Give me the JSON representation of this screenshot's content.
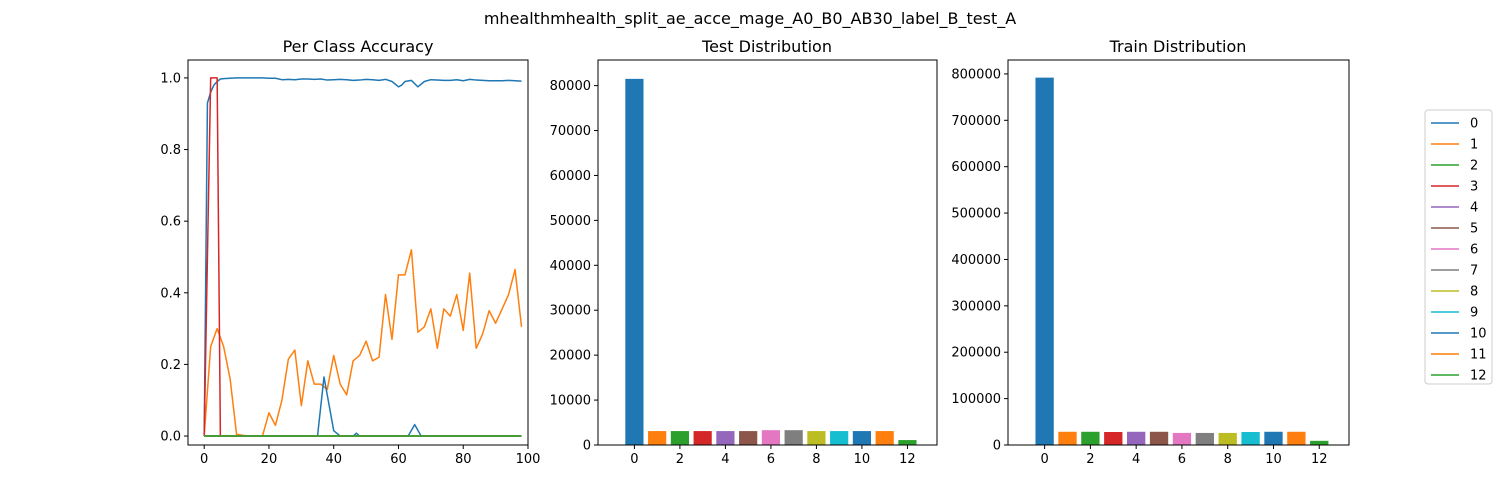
{
  "figure": {
    "suptitle": "mhealthmhealth_split_ae_acce_mage_A0_B0_AB30_label_B_test_A"
  },
  "colors": [
    "#1f77b4",
    "#ff7f0e",
    "#2ca02c",
    "#d62728",
    "#9467bd",
    "#8c564b",
    "#e377c2",
    "#7f7f7f",
    "#bcbd22",
    "#17becf",
    "#1f77b4",
    "#ff7f0e",
    "#2ca02c"
  ],
  "legend": {
    "placement": "right",
    "labels": [
      "0",
      "1",
      "2",
      "3",
      "4",
      "5",
      "6",
      "7",
      "8",
      "9",
      "10",
      "11",
      "12"
    ]
  },
  "chart_data": [
    {
      "type": "line",
      "title": "Per Class Accuracy",
      "xlim": [
        -5,
        100
      ],
      "ylim": [
        -0.025,
        1.05
      ],
      "xticks": [
        "0",
        "20",
        "40",
        "60",
        "80",
        "100"
      ],
      "yticks": [
        "0.0",
        "0.2",
        "0.4",
        "0.6",
        "0.8",
        "1.0"
      ],
      "series": [
        {
          "label": "0",
          "x": [
            0,
            1,
            2,
            3,
            4,
            5,
            6,
            8,
            10,
            12,
            14,
            16,
            18,
            20,
            22,
            24,
            26,
            28,
            30,
            32,
            34,
            36,
            38,
            40,
            42,
            44,
            46,
            48,
            50,
            52,
            54,
            56,
            58,
            60,
            61,
            62,
            64,
            66,
            68,
            70,
            72,
            74,
            76,
            78,
            80,
            82,
            84,
            86,
            88,
            90,
            92,
            94,
            96,
            98
          ],
          "y": [
            0,
            0.93,
            0.96,
            0.98,
            0.99,
            0.997,
            0.998,
            0.999,
            1,
            1,
            1,
            1,
            1,
            0.999,
            0.999,
            0.995,
            0.996,
            0.995,
            0.997,
            0.997,
            0.996,
            0.997,
            0.994,
            0.995,
            0.996,
            0.995,
            0.993,
            0.994,
            0.996,
            0.995,
            0.993,
            0.996,
            0.99,
            0.975,
            0.98,
            0.99,
            0.993,
            0.975,
            0.99,
            0.995,
            0.994,
            0.993,
            0.993,
            0.995,
            0.992,
            0.996,
            0.994,
            0.993,
            0.992,
            0.992,
            0.992,
            0.993,
            0.992,
            0.991
          ]
        },
        {
          "label": "1",
          "x": [
            0,
            2,
            4,
            6,
            8,
            10,
            12,
            14,
            16,
            18,
            20,
            22,
            24,
            26,
            28,
            30,
            32,
            34,
            36,
            38,
            40,
            42,
            44,
            46,
            48,
            50,
            52,
            54,
            56,
            58,
            60,
            62,
            64,
            66,
            68,
            70,
            72,
            74,
            76,
            78,
            80,
            82,
            84,
            86,
            88,
            90,
            92,
            94,
            96,
            98
          ],
          "y": [
            0,
            0.25,
            0.3,
            0.25,
            0.16,
            0.005,
            0.002,
            0,
            0,
            0,
            0.065,
            0.03,
            0.1,
            0.215,
            0.24,
            0.085,
            0.21,
            0.145,
            0.145,
            0.13,
            0.225,
            0.145,
            0.115,
            0.21,
            0.225,
            0.265,
            0.21,
            0.22,
            0.395,
            0.27,
            0.45,
            0.45,
            0.52,
            0.29,
            0.305,
            0.355,
            0.245,
            0.355,
            0.335,
            0.395,
            0.295,
            0.455,
            0.245,
            0.285,
            0.35,
            0.315,
            0.355,
            0.395,
            0.465,
            0.305
          ]
        },
        {
          "label": "2",
          "x": [
            0,
            98
          ],
          "y": [
            0,
            0
          ]
        },
        {
          "label": "3",
          "x": [
            0,
            2,
            3,
            4,
            5,
            6,
            8,
            10,
            20,
            40,
            60,
            80,
            98
          ],
          "y": [
            0,
            1,
            1,
            1,
            0,
            0,
            0,
            0,
            0,
            0,
            0,
            0,
            0
          ]
        },
        {
          "label": "4",
          "x": [
            0,
            98
          ],
          "y": [
            0,
            0
          ]
        },
        {
          "label": "5",
          "x": [
            0,
            98
          ],
          "y": [
            0,
            0
          ]
        },
        {
          "label": "6",
          "x": [
            0,
            98
          ],
          "y": [
            0,
            0
          ]
        },
        {
          "label": "7",
          "x": [
            0,
            98
          ],
          "y": [
            0,
            0
          ]
        },
        {
          "label": "8",
          "x": [
            0,
            98
          ],
          "y": [
            0,
            0
          ]
        },
        {
          "label": "9",
          "x": [
            0,
            98
          ],
          "y": [
            0,
            0
          ]
        },
        {
          "label": "10",
          "x": [
            0,
            34,
            35,
            37,
            38,
            39,
            40,
            42,
            44,
            46,
            47,
            48,
            50,
            60,
            63,
            65,
            67,
            70,
            80,
            98
          ],
          "y": [
            0,
            0,
            0,
            0.165,
            0.115,
            0.065,
            0.015,
            0,
            0,
            0,
            0.008,
            0,
            0,
            0,
            0,
            0.032,
            0,
            0,
            0,
            0
          ]
        },
        {
          "label": "11",
          "x": [
            0,
            98
          ],
          "y": [
            0,
            0
          ]
        },
        {
          "label": "12",
          "x": [
            0,
            98
          ],
          "y": [
            0,
            0
          ]
        }
      ]
    },
    {
      "type": "bar",
      "title": "Test Distribution",
      "xlim": [
        -1.6,
        13.3
      ],
      "ylim": [
        0,
        85700
      ],
      "xticks": [
        "0",
        "2",
        "4",
        "6",
        "8",
        "10",
        "12"
      ],
      "yticks": [
        "0",
        "10000",
        "20000",
        "30000",
        "40000",
        "50000",
        "60000",
        "70000",
        "80000"
      ],
      "categories": [
        0,
        1,
        2,
        3,
        4,
        5,
        6,
        7,
        8,
        9,
        10,
        11,
        12
      ],
      "values": [
        81500,
        3100,
        3100,
        3100,
        3100,
        3100,
        3300,
        3300,
        3100,
        3100,
        3100,
        3100,
        1100
      ]
    },
    {
      "type": "bar",
      "title": "Train Distribution",
      "xlim": [
        -1.6,
        13.3
      ],
      "ylim": [
        0,
        830000
      ],
      "xticks": [
        "0",
        "2",
        "4",
        "6",
        "8",
        "10",
        "12"
      ],
      "yticks": [
        "0",
        "100000",
        "200000",
        "300000",
        "400000",
        "500000",
        "600000",
        "700000",
        "800000"
      ],
      "categories": [
        0,
        1,
        2,
        3,
        4,
        5,
        6,
        7,
        8,
        9,
        10,
        11,
        12
      ],
      "values": [
        792000,
        28500,
        28500,
        28000,
        28500,
        28500,
        26000,
        26000,
        26000,
        28000,
        28500,
        28500,
        9000
      ]
    }
  ]
}
